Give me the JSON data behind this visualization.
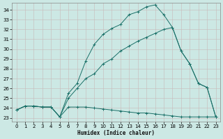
{
  "xlabel": "Humidex (Indice chaleur)",
  "bg_color": "#cce8e4",
  "grid_color_major": "#b8d4cf",
  "grid_color_minor": "#d4e8e4",
  "line_color": "#1a7068",
  "xlim": [
    -0.5,
    23.5
  ],
  "ylim": [
    22.6,
    34.7
  ],
  "xticks": [
    0,
    1,
    2,
    3,
    4,
    5,
    6,
    7,
    8,
    9,
    10,
    11,
    12,
    13,
    14,
    15,
    16,
    17,
    18,
    19,
    20,
    21,
    22,
    23
  ],
  "yticks": [
    23,
    24,
    25,
    26,
    27,
    28,
    29,
    30,
    31,
    32,
    33,
    34
  ],
  "line1_x": [
    0,
    1,
    2,
    3,
    4,
    5,
    6,
    7,
    8,
    9,
    10,
    11,
    12,
    13,
    14,
    15,
    16,
    17,
    18,
    19,
    20,
    21,
    22,
    23
  ],
  "line1_y": [
    23.8,
    24.2,
    24.2,
    24.1,
    24.1,
    23.1,
    24.1,
    24.1,
    24.1,
    24.0,
    23.9,
    23.8,
    23.7,
    23.6,
    23.5,
    23.5,
    23.4,
    23.3,
    23.2,
    23.1,
    23.1,
    23.1,
    23.1,
    23.1
  ],
  "line2_x": [
    0,
    1,
    2,
    3,
    4,
    5,
    6,
    7,
    8,
    9,
    10,
    11,
    12,
    13,
    14,
    15,
    16,
    17,
    18,
    19,
    20,
    21,
    22,
    23
  ],
  "line2_y": [
    23.8,
    24.2,
    24.2,
    24.1,
    24.1,
    23.1,
    25.5,
    26.5,
    28.8,
    30.5,
    31.5,
    32.1,
    32.5,
    33.5,
    33.8,
    34.3,
    34.5,
    33.5,
    32.2,
    29.8,
    28.5,
    26.5,
    26.1,
    23.1
  ],
  "line3_x": [
    0,
    1,
    2,
    3,
    4,
    5,
    6,
    7,
    8,
    9,
    10,
    11,
    12,
    13,
    14,
    15,
    16,
    17,
    18,
    19,
    20,
    21,
    22,
    23
  ],
  "line3_y": [
    23.8,
    24.2,
    24.2,
    24.1,
    24.1,
    23.1,
    25.0,
    26.0,
    27.0,
    27.5,
    28.5,
    29.0,
    29.8,
    30.3,
    30.8,
    31.2,
    31.6,
    32.0,
    32.2,
    29.8,
    28.5,
    26.5,
    26.1,
    23.1
  ],
  "xlabel_fontsize": 5.5,
  "tick_fontsize": 5,
  "lw": 0.7,
  "ms": 2.5
}
